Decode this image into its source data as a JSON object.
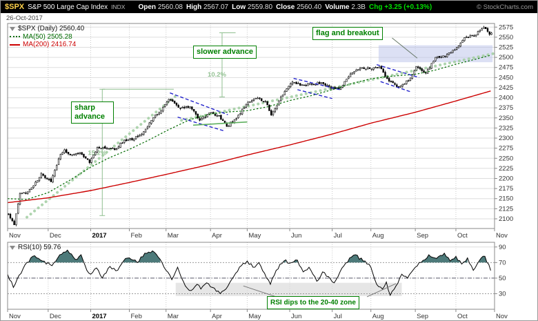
{
  "header": {
    "symbol": "$SPX",
    "index_name": "S&P 500 Large Cap Index",
    "exchange": "INDX",
    "quote": {
      "open_label": "Open",
      "open": "2560.08",
      "high_label": "High",
      "high": "2567.07",
      "low_label": "Low",
      "low": "2559.80",
      "close_label": "Close",
      "close": "2560.40",
      "volume_label": "Volume",
      "volume": "2.3B",
      "chg_label": "Chg",
      "chg": "+3.25 (+0.13%)"
    },
    "copyright": "© StockCharts.com"
  },
  "date_label": "26-Oct-2017",
  "main_panel": {
    "legend_title": "$SPX (Daily) 2560.40",
    "legend_ma50": "MA(50) 2505.28",
    "legend_ma200": "MA(200) 2416.74"
  },
  "rsi_panel": {
    "legend": "RSI(10) 59.76"
  },
  "annotations": {
    "sharp_advance": "sharp advance",
    "slower_advance": "slower advance",
    "flag_breakout": "flag and breakout",
    "rsi_note": "RSI dips to the 20-40 zone",
    "measure1": "15.2%",
    "measure2": "10.2%"
  },
  "colors": {
    "symbol": "#ffd24a",
    "change_positive": "#00e000",
    "annotation_green": "#008000",
    "trendline_green": "#a6d0a6",
    "measure_green": "#8fbf8f",
    "flag_blue": "#2525cc",
    "support_green": "#5fb05f",
    "ma50_green": "#006b00",
    "ma200_red": "#cc0000",
    "zone_fill": "#b9c2ea",
    "rsi_fill": "#3a6b6b",
    "band_gray": "#d9d9d9"
  },
  "chart_data": {
    "type": "candlestick",
    "title": "$SPX Daily with MA(50), MA(200) and RSI(10)",
    "symbol": "$SPX",
    "timeframe": "Daily",
    "total_days": 252,
    "x_months": [
      {
        "label": "Nov",
        "day": 0
      },
      {
        "label": "Dec",
        "day": 21
      },
      {
        "label": "2017",
        "day": 43,
        "bold": true
      },
      {
        "label": "Feb",
        "day": 63
      },
      {
        "label": "Mar",
        "day": 82
      },
      {
        "label": "Apr",
        "day": 105
      },
      {
        "label": "May",
        "day": 124
      },
      {
        "label": "Jun",
        "day": 146
      },
      {
        "label": "Jul",
        "day": 168
      },
      {
        "label": "Aug",
        "day": 188
      },
      {
        "label": "Sep",
        "day": 211
      },
      {
        "label": "Oct",
        "day": 232
      },
      {
        "label": "Nov",
        "day": 252
      }
    ],
    "price_axis": {
      "min": 2076,
      "max": 2584,
      "ticks": [
        2575,
        2550,
        2525,
        2500,
        2475,
        2450,
        2425,
        2400,
        2375,
        2350,
        2325,
        2300,
        2275,
        2250,
        2225,
        2200,
        2175,
        2150,
        2125,
        2100
      ]
    },
    "close_anchors": [
      [
        0,
        2112
      ],
      [
        3,
        2085
      ],
      [
        6,
        2163
      ],
      [
        9,
        2164
      ],
      [
        13,
        2182
      ],
      [
        17,
        2213
      ],
      [
        20,
        2199
      ],
      [
        22,
        2192
      ],
      [
        27,
        2260
      ],
      [
        29,
        2271
      ],
      [
        32,
        2258
      ],
      [
        37,
        2264
      ],
      [
        42,
        2239
      ],
      [
        46,
        2277
      ],
      [
        51,
        2275
      ],
      [
        55,
        2271
      ],
      [
        60,
        2295
      ],
      [
        65,
        2298
      ],
      [
        70,
        2316
      ],
      [
        75,
        2351
      ],
      [
        79,
        2367
      ],
      [
        83,
        2396
      ],
      [
        89,
        2373
      ],
      [
        94,
        2378
      ],
      [
        99,
        2344
      ],
      [
        104,
        2363
      ],
      [
        109,
        2356
      ],
      [
        113,
        2329
      ],
      [
        118,
        2349
      ],
      [
        123,
        2384
      ],
      [
        128,
        2399
      ],
      [
        133,
        2391
      ],
      [
        136,
        2357
      ],
      [
        143,
        2416
      ],
      [
        147,
        2439
      ],
      [
        152,
        2432
      ],
      [
        157,
        2433
      ],
      [
        162,
        2438
      ],
      [
        167,
        2423
      ],
      [
        172,
        2425
      ],
      [
        177,
        2459
      ],
      [
        182,
        2473
      ],
      [
        187,
        2472
      ],
      [
        192,
        2477
      ],
      [
        197,
        2441
      ],
      [
        202,
        2426
      ],
      [
        207,
        2443
      ],
      [
        211,
        2477
      ],
      [
        216,
        2461
      ],
      [
        221,
        2500
      ],
      [
        226,
        2502
      ],
      [
        231,
        2519
      ],
      [
        236,
        2549
      ],
      [
        241,
        2553
      ],
      [
        246,
        2575
      ],
      [
        249,
        2557
      ],
      [
        250,
        2560.4
      ]
    ],
    "ma50_anchors": [
      [
        0,
        2150
      ],
      [
        10,
        2148
      ],
      [
        21,
        2165
      ],
      [
        32,
        2195
      ],
      [
        43,
        2228
      ],
      [
        53,
        2252
      ],
      [
        63,
        2272
      ],
      [
        73,
        2295
      ],
      [
        83,
        2320
      ],
      [
        94,
        2345
      ],
      [
        105,
        2360
      ],
      [
        115,
        2365
      ],
      [
        124,
        2368
      ],
      [
        135,
        2378
      ],
      [
        146,
        2393
      ],
      [
        157,
        2405
      ],
      [
        168,
        2420
      ],
      [
        178,
        2435
      ],
      [
        188,
        2447
      ],
      [
        198,
        2453
      ],
      [
        211,
        2458
      ],
      [
        221,
        2468
      ],
      [
        232,
        2483
      ],
      [
        241,
        2494
      ],
      [
        250,
        2505.28
      ]
    ],
    "ma200_anchors": [
      [
        0,
        2140
      ],
      [
        21,
        2152
      ],
      [
        43,
        2170
      ],
      [
        63,
        2190
      ],
      [
        82,
        2210
      ],
      [
        105,
        2235
      ],
      [
        124,
        2258
      ],
      [
        146,
        2283
      ],
      [
        168,
        2310
      ],
      [
        188,
        2337
      ],
      [
        211,
        2364
      ],
      [
        232,
        2392
      ],
      [
        250,
        2416.74
      ]
    ],
    "rsi_axis": {
      "min": 10,
      "max": 96,
      "ticks": [
        90,
        70,
        50,
        30
      ],
      "overbought": 70,
      "midline": 50,
      "oversold": 30
    },
    "rsi_anchors": [
      [
        0,
        55
      ],
      [
        3,
        38
      ],
      [
        8,
        62
      ],
      [
        13,
        78
      ],
      [
        18,
        72
      ],
      [
        23,
        66
      ],
      [
        27,
        80
      ],
      [
        31,
        86
      ],
      [
        35,
        74
      ],
      [
        38,
        80
      ],
      [
        41,
        60
      ],
      [
        43,
        55
      ],
      [
        46,
        63
      ],
      [
        49,
        50
      ],
      [
        53,
        65
      ],
      [
        57,
        60
      ],
      [
        60,
        72
      ],
      [
        63,
        76
      ],
      [
        67,
        70
      ],
      [
        71,
        82
      ],
      [
        75,
        85
      ],
      [
        79,
        74
      ],
      [
        82,
        60
      ],
      [
        85,
        48
      ],
      [
        88,
        64
      ],
      [
        92,
        40
      ],
      [
        95,
        34
      ],
      [
        98,
        42
      ],
      [
        100,
        36
      ],
      [
        103,
        44
      ],
      [
        106,
        38
      ],
      [
        110,
        30
      ],
      [
        113,
        36
      ],
      [
        117,
        52
      ],
      [
        121,
        66
      ],
      [
        124,
        72
      ],
      [
        127,
        64
      ],
      [
        130,
        70
      ],
      [
        134,
        50
      ],
      [
        136,
        42
      ],
      [
        139,
        60
      ],
      [
        143,
        72
      ],
      [
        147,
        70
      ],
      [
        150,
        73
      ],
      [
        153,
        58
      ],
      [
        156,
        64
      ],
      [
        160,
        46
      ],
      [
        163,
        58
      ],
      [
        166,
        52
      ],
      [
        169,
        44
      ],
      [
        172,
        58
      ],
      [
        177,
        76
      ],
      [
        180,
        80
      ],
      [
        184,
        72
      ],
      [
        188,
        64
      ],
      [
        191,
        42
      ],
      [
        194,
        36
      ],
      [
        196,
        45
      ],
      [
        198,
        28
      ],
      [
        201,
        40
      ],
      [
        204,
        55
      ],
      [
        207,
        50
      ],
      [
        211,
        64
      ],
      [
        214,
        70
      ],
      [
        218,
        80
      ],
      [
        221,
        76
      ],
      [
        226,
        82
      ],
      [
        229,
        72
      ],
      [
        232,
        78
      ],
      [
        235,
        68
      ],
      [
        238,
        76
      ],
      [
        241,
        60
      ],
      [
        244,
        72
      ],
      [
        247,
        78
      ],
      [
        250,
        59.76
      ]
    ],
    "overlays": {
      "trendlines": [
        {
          "d1": 10,
          "p1": 2104,
          "d2": 88,
          "p2": 2408
        },
        {
          "d1": 90,
          "p1": 2344,
          "d2": 252,
          "p2": 2510
        }
      ],
      "measures": [
        {
          "label_key": "measure1",
          "day": 49,
          "p1": 2108,
          "p2": 2421,
          "cap_day": 86,
          "label_p": 2258
        },
        {
          "label_key": "measure2",
          "day": 111,
          "p1": 2402,
          "p2": 2561,
          "cap_day": 118,
          "label_p": 2452
        }
      ],
      "flags": [
        [
          84,
          2412,
          114,
          2358
        ],
        [
          88,
          2352,
          112,
          2318
        ],
        [
          148,
          2448,
          172,
          2420
        ],
        [
          150,
          2420,
          168,
          2398
        ],
        [
          191,
          2482,
          213,
          2450
        ],
        [
          193,
          2440,
          209,
          2414
        ]
      ],
      "support": [
        96,
        2332,
        124,
        2340
      ],
      "zone": {
        "d1": 192,
        "p1": 2488,
        "d2": 251,
        "p2": 2530
      },
      "pointer": [
        199,
        2548,
        212,
        2498
      ],
      "rsi_band": {
        "d1": 87,
        "d2": 204,
        "v1": 27,
        "v2": 44
      },
      "rsi_pointers": [
        [
          139,
          26,
          122,
          40
        ],
        [
          186,
          26,
          201,
          43
        ]
      ]
    }
  }
}
